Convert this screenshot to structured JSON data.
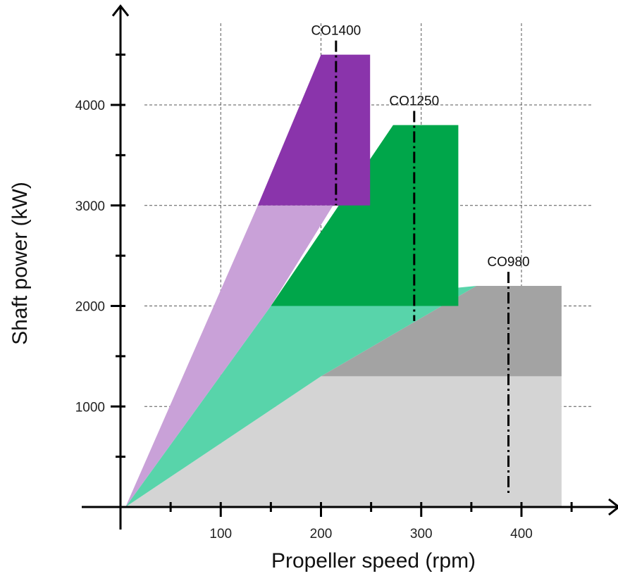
{
  "chart_data": {
    "type": "area",
    "xlabel": "Propeller speed (rpm)",
    "ylabel": "Shaft power (kW)",
    "xlim": [
      0,
      490
    ],
    "ylim": [
      0,
      4900
    ],
    "x_ticks": [
      100,
      200,
      300,
      400
    ],
    "y_ticks": [
      1000,
      2000,
      3000,
      4000
    ],
    "x_minor_ticks": [
      50,
      150,
      250,
      350,
      450
    ],
    "y_minor_ticks": [
      500,
      1500,
      2500,
      3500,
      4500
    ],
    "grid": true,
    "series": [
      {
        "name": "CO980",
        "color_light": "#d4d4d4",
        "color_dark": "#a3a3a3",
        "speed_line_rpm": 387,
        "polygons": [
          {
            "shade": "light",
            "points": [
              [
                5,
                0
              ],
              [
                440,
                0
              ],
              [
                440,
                1300
              ],
              [
                200,
                1300
              ]
            ]
          },
          {
            "shade": "dark",
            "points": [
              [
                200,
                1300
              ],
              [
                440,
                1300
              ],
              [
                440,
                2200
              ],
              [
                355,
                2200
              ]
            ]
          }
        ]
      },
      {
        "name": "CO1250",
        "color_light": "#58d4aa",
        "color_dark": "#00a64a",
        "speed_line_rpm": 293,
        "speed_line_ymin": 1850,
        "polygons": [
          {
            "shade": "light",
            "points": [
              [
                5,
                0
              ],
              [
                200,
                1300
              ],
              [
                355,
                2200
              ],
              [
                150,
                2000
              ]
            ]
          },
          {
            "shade": "dark",
            "points": [
              [
                150,
                2000
              ],
              [
                272,
                3800
              ],
              [
                337,
                3800
              ],
              [
                337,
                2000
              ]
            ]
          }
        ]
      },
      {
        "name": "CO1400",
        "color_light": "#c9a1d8",
        "color_dark": "#8a34ab",
        "speed_line_rpm": 215,
        "speed_line_ymin": 3000,
        "polygons": [
          {
            "shade": "light",
            "points": [
              [
                5,
                0
              ],
              [
                150,
                2000
              ],
              [
                212,
                3000
              ],
              [
                137,
                3000
              ]
            ]
          },
          {
            "shade": "dark",
            "points": [
              [
                137,
                3000
              ],
              [
                200,
                4500
              ],
              [
                249,
                4500
              ],
              [
                249,
                3000
              ]
            ]
          }
        ]
      }
    ]
  }
}
